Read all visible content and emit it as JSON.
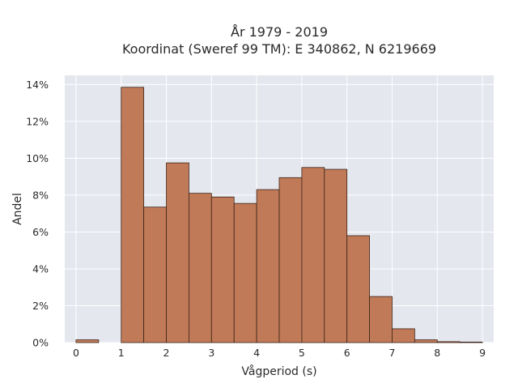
{
  "chart_data": {
    "type": "bar",
    "title_line1": "År 1979 - 2019",
    "title_line2": "Koordinat (Sweref 99 TM): E 340862, N 6219669",
    "xlabel": "Vågperiod (s)",
    "ylabel": "Andel",
    "bin_width": 0.5,
    "xlim": [
      -0.25,
      9.25
    ],
    "ylim": [
      0,
      14.5
    ],
    "x_ticks": [
      0,
      1,
      2,
      3,
      4,
      5,
      6,
      7,
      8,
      9
    ],
    "x_tick_labels": [
      "0",
      "1",
      "2",
      "3",
      "4",
      "5",
      "6",
      "7",
      "8",
      "9"
    ],
    "y_ticks": [
      0,
      2,
      4,
      6,
      8,
      10,
      12,
      14
    ],
    "y_tick_labels": [
      "0%",
      "2%",
      "4%",
      "6%",
      "8%",
      "10%",
      "12%",
      "14%"
    ],
    "bin_starts": [
      0,
      0.5,
      1,
      1.5,
      2,
      2.5,
      3,
      3.5,
      4,
      4.5,
      5,
      5.5,
      6,
      6.5,
      7,
      7.5,
      8,
      8.5
    ],
    "values": [
      0.15,
      0,
      13.85,
      7.35,
      9.75,
      8.1,
      7.9,
      7.55,
      8.3,
      8.95,
      9.5,
      9.4,
      5.8,
      2.5,
      0.75,
      0.15,
      0.05,
      0.03
    ],
    "grid": true,
    "legend": "none",
    "colors": {
      "plot_bg": "#e5e7ef",
      "grid": "#ffffff",
      "bar_fill": "#c07a57",
      "bar_edge": "#3b2418"
    }
  }
}
